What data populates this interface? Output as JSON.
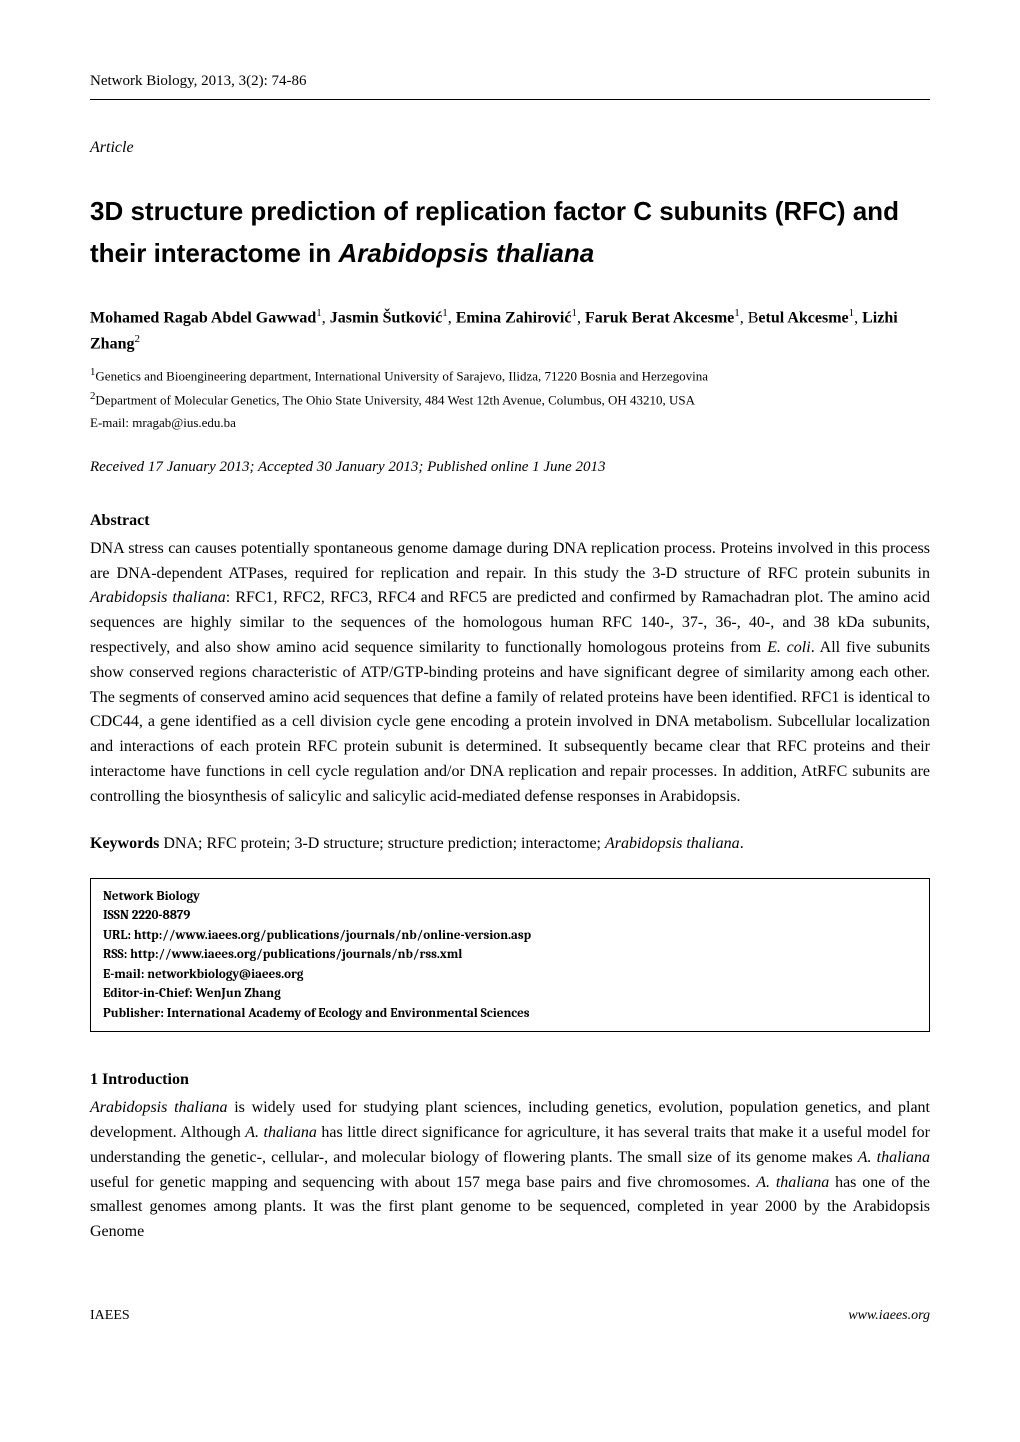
{
  "header": {
    "journal_line": "Network Biology, 2013, 3(2): 74-86"
  },
  "article_label": "Article",
  "title": "3D structure prediction of replication factor C subunits (RFC) and their interactome in Arabidopsis thaliana",
  "title_font_family": "Arial, Helvetica, sans-serif",
  "title_font_size": 26,
  "authors_line_1": "Mohamed Ragab Abdel Gawwad",
  "authors_sup_1": "1",
  "authors_sep_1": ", ",
  "authors_line_2": "Jasmin Šutković",
  "authors_sup_2": "1",
  "authors_sep_2": ", ",
  "authors_line_3": "Emina Zahirović",
  "authors_sup_3": "1",
  "authors_sep_3": ", ",
  "authors_line_4": "Faruk Berat Akcesme",
  "authors_sup_4": "1",
  "authors_sep_4": ", B",
  "authors_line_5": "etul Akcesme",
  "authors_sup_5": "1",
  "authors_sep_5": ", ",
  "authors_line_6": "Lizhi Zhang",
  "authors_sup_6": "2",
  "affiliations": {
    "a1_sup": "1",
    "a1": "Genetics and Bioengineering department, International University of Sarajevo, Ilidza, 71220 Bosnia and Herzegovina",
    "a2_sup": "2",
    "a2": "Department of Molecular Genetics, The Ohio State University, 484 West 12th Avenue, Columbus, OH 43210, USA"
  },
  "email_label": "E-mail: ",
  "email": "mragab@ius.edu.ba",
  "dates": {
    "received_label": "Received 17 January 2013",
    "sep1": "; ",
    "accepted_label": "Accepted 30 January 2013",
    "sep2": "; ",
    "published_label": "Published online 1 June 2013"
  },
  "abstract": {
    "heading": "Abstract",
    "text": "DNA stress can causes potentially spontaneous genome damage during DNA replication process. Proteins involved in this process are DNA-dependent ATPases, required for replication and repair. In this study the 3-D structure of RFC protein subunits in Arabidopsis thaliana: RFC1, RFC2, RFC3, RFC4 and RFC5 are predicted and confirmed by Ramachadran plot. The amino acid sequences are highly similar to the sequences of the homologous human RFC 140-, 37-, 36-, 40-, and 38 kDa subunits, respectively, and also show amino acid sequence similarity to functionally homologous proteins from E. coli. All five subunits show conserved regions characteristic of ATP/GTP-binding proteins and have significant degree of similarity among each other. The segments of conserved amino acid sequences that define a family of related proteins have been identified. RFC1 is identical to CDC44, a gene identified as a cell division cycle gene encoding a protein involved in DNA metabolism. Subcellular localization and interactions of each protein RFC protein subunit is determined. It subsequently became clear that RFC proteins and their interactome have functions in cell cycle regulation and/or DNA replication and repair processes. In addition, AtRFC subunits are controlling the biosynthesis of salicylic and salicylic acid-mediated defense responses in Arabidopsis."
  },
  "keywords": {
    "label": "Keywords",
    "text": " DNA; RFC protein; 3-D structure; structure prediction; interactome; Arabidopsis thaliana."
  },
  "info_box": {
    "title": "Network Biology",
    "issn": "ISSN 2220-8879",
    "url": "URL: http://www.iaees.org/publications/journals/nb/online-version.asp",
    "rss": "RSS: http://www.iaees.org/publications/journals/nb/rss.xml",
    "email": "E-mail: networkbiology@iaees.org",
    "editor": "Editor-in-Chief: WenJun Zhang",
    "publisher": "Publisher: International Academy of Ecology and Environmental Sciences",
    "font_size": 13
  },
  "intro": {
    "heading": "1 Introduction",
    "text": "Arabidopsis thaliana is widely used for studying plant sciences, including genetics, evolution, population genetics, and plant development. Although A. thaliana has little direct significance for agriculture, it has several traits that make it a useful model for understanding the genetic-, cellular-, and molecular biology of flowering plants. The small size of its genome makes A. thaliana useful for genetic mapping and sequencing with about 157 mega base pairs and five chromosomes. A. thaliana has one of the smallest genomes among plants. It was the first plant genome to be sequenced, completed in year 2000 by the Arabidopsis Genome"
  },
  "footer": {
    "left": "IAEES",
    "right": "www.iaees.org"
  },
  "colors": {
    "text": "#000000",
    "background": "#ffffff",
    "rule": "#000000"
  }
}
